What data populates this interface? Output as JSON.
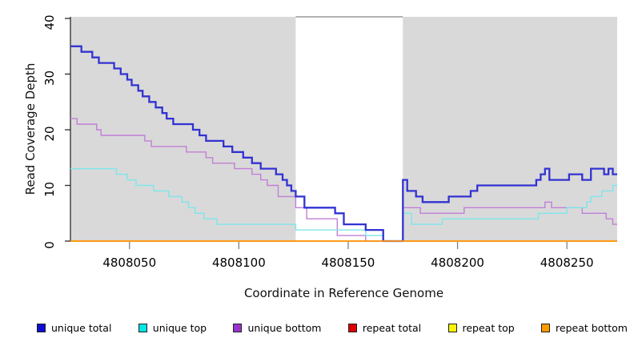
{
  "chart_data": {
    "type": "line",
    "subtype": "step-coverage",
    "title": "",
    "xlabel": "Coordinate in Reference Genome",
    "ylabel": "Read Coverage Depth",
    "xlim": [
      4808023,
      4808273
    ],
    "ylim": [
      0,
      40
    ],
    "x_ticks": [
      4808050,
      4808100,
      4808150,
      4808200,
      4808250
    ],
    "y_ticks": [
      0,
      10,
      20,
      30,
      40
    ],
    "grid": false,
    "legend_position": "bottom",
    "background_color": "#ffffff",
    "highlight_color": "#d9d9d9",
    "highlight_regions": [
      [
        4808023,
        4808126
      ],
      [
        4808175,
        4808273
      ]
    ],
    "gap_region": [
      4808126,
      4808175
    ],
    "series": [
      {
        "name": "repeat total",
        "color": "#dd0000",
        "width": 1.4,
        "points": [
          [
            4808023,
            0
          ]
        ]
      },
      {
        "name": "repeat top",
        "color": "#eded00",
        "width": 1.4,
        "points": [
          [
            4808023,
            0
          ]
        ]
      },
      {
        "name": "unique bottom",
        "color": "#c17fd8",
        "width": 1.4,
        "points": [
          [
            4808023,
            22
          ],
          [
            4808026,
            21
          ],
          [
            4808035,
            20
          ],
          [
            4808037,
            19
          ],
          [
            4808057,
            18
          ],
          [
            4808060,
            17
          ],
          [
            4808076,
            16
          ],
          [
            4808085,
            15
          ],
          [
            4808088,
            14
          ],
          [
            4808098,
            13
          ],
          [
            4808106,
            12
          ],
          [
            4808110,
            11
          ],
          [
            4808113,
            10
          ],
          [
            4808118,
            8
          ],
          [
            4808126,
            6
          ],
          [
            4808131,
            4
          ],
          [
            4808145,
            1
          ],
          [
            4808158,
            0
          ],
          [
            4808175,
            6
          ],
          [
            4808183,
            5
          ],
          [
            4808203,
            6
          ],
          [
            4808240,
            7
          ],
          [
            4808243,
            6
          ],
          [
            4808257,
            5
          ],
          [
            4808268,
            4
          ],
          [
            4808271,
            3
          ]
        ]
      },
      {
        "name": "unique top",
        "color": "#7de6ea",
        "width": 1.4,
        "points": [
          [
            4808023,
            13
          ],
          [
            4808044,
            12
          ],
          [
            4808049,
            11
          ],
          [
            4808053,
            10
          ],
          [
            4808061,
            9
          ],
          [
            4808068,
            8
          ],
          [
            4808074,
            7
          ],
          [
            4808077,
            6
          ],
          [
            4808080,
            5
          ],
          [
            4808084,
            4
          ],
          [
            4808090,
            3
          ],
          [
            4808126,
            2
          ],
          [
            4808158,
            1
          ],
          [
            4808166,
            0
          ],
          [
            4808175,
            5
          ],
          [
            4808179,
            3
          ],
          [
            4808193,
            4
          ],
          [
            4808237,
            5
          ],
          [
            4808250,
            6
          ],
          [
            4808259,
            7
          ],
          [
            4808261,
            8
          ],
          [
            4808266,
            9
          ],
          [
            4808271,
            10
          ]
        ]
      },
      {
        "name": "unique total",
        "color": "#3232d2",
        "width": 2.3,
        "points": [
          [
            4808023,
            35
          ],
          [
            4808028,
            34
          ],
          [
            4808033,
            33
          ],
          [
            4808036,
            32
          ],
          [
            4808043,
            31
          ],
          [
            4808046,
            30
          ],
          [
            4808049,
            29
          ],
          [
            4808051,
            28
          ],
          [
            4808054,
            27
          ],
          [
            4808056,
            26
          ],
          [
            4808059,
            25
          ],
          [
            4808062,
            24
          ],
          [
            4808065,
            23
          ],
          [
            4808067,
            22
          ],
          [
            4808070,
            21
          ],
          [
            4808079,
            20
          ],
          [
            4808082,
            19
          ],
          [
            4808085,
            18
          ],
          [
            4808093,
            17
          ],
          [
            4808097,
            16
          ],
          [
            4808102,
            15
          ],
          [
            4808106,
            14
          ],
          [
            4808110,
            13
          ],
          [
            4808117,
            12
          ],
          [
            4808120,
            11
          ],
          [
            4808122,
            10
          ],
          [
            4808124,
            9
          ],
          [
            4808126,
            8
          ],
          [
            4808130,
            6
          ],
          [
            4808144,
            5
          ],
          [
            4808148,
            3
          ],
          [
            4808158,
            2
          ],
          [
            4808166,
            0
          ],
          [
            4808175,
            11
          ],
          [
            4808177,
            9
          ],
          [
            4808181,
            8
          ],
          [
            4808184,
            7
          ],
          [
            4808196,
            8
          ],
          [
            4808206,
            9
          ],
          [
            4808209,
            10
          ],
          [
            4808236,
            11
          ],
          [
            4808238,
            12
          ],
          [
            4808240,
            13
          ],
          [
            4808242,
            11
          ],
          [
            4808251,
            12
          ],
          [
            4808257,
            11
          ],
          [
            4808261,
            13
          ],
          [
            4808267,
            12
          ],
          [
            4808269,
            13
          ],
          [
            4808271,
            12
          ]
        ]
      },
      {
        "name": "repeat bottom",
        "color": "#ff9712",
        "width": 1.8,
        "points": [
          [
            4808023,
            0
          ]
        ]
      }
    ],
    "axis_colors": {
      "y_axis": "#2b2b2b",
      "x_ticks": "#808080",
      "gap_top_border": "#999999"
    }
  },
  "labels": {
    "xlabel": "Coordinate in Reference Genome",
    "ylabel": "Read Coverage Depth"
  },
  "legend": {
    "items": [
      {
        "label": "unique total",
        "color": "#0d0dd6"
      },
      {
        "label": "unique top",
        "color": "#00e5e5"
      },
      {
        "label": "unique bottom",
        "color": "#9933cc"
      },
      {
        "label": "repeat total",
        "color": "#dd0000"
      },
      {
        "label": "repeat top",
        "color": "#f5f500"
      },
      {
        "label": "repeat bottom",
        "color": "#ff9900"
      }
    ]
  }
}
